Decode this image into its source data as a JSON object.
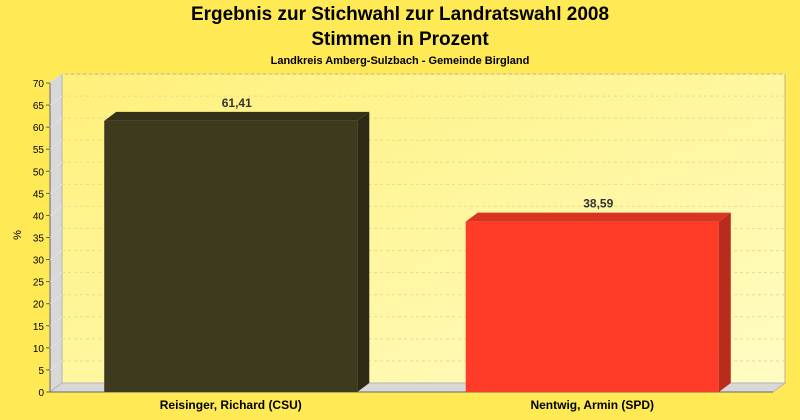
{
  "chart_data": {
    "type": "bar",
    "title": "Ergebnis zur Stichwahl zur Landratswahl 2008",
    "title_line2": "Stimmen in Prozent",
    "subtitle": "Landkreis Amberg-Sulzbach - Gemeinde Birgland",
    "ylabel": "%",
    "xlabel": "",
    "ylim": [
      0,
      70
    ],
    "yticks": [
      0,
      5,
      10,
      15,
      20,
      25,
      30,
      35,
      40,
      45,
      50,
      55,
      60,
      65,
      70
    ],
    "grid": true,
    "categories": [
      "Reisinger, Richard (CSU)",
      "Nentwig, Armin (SPD)"
    ],
    "values": [
      61.41,
      38.59
    ],
    "value_labels": [
      "61,41",
      "38,59"
    ],
    "colors": [
      "#3d3a1e",
      "#ff3c28"
    ]
  }
}
